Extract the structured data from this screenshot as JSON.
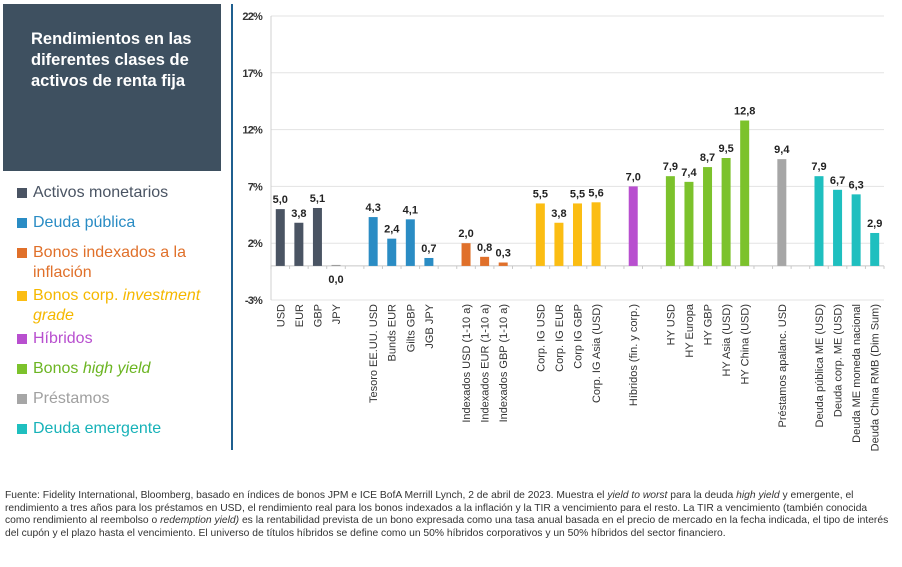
{
  "title": "Rendimientos en las diferentes clases de activos de renta fija",
  "legend": [
    {
      "label": "Activos monetarios",
      "color": "#4a5463",
      "text_color": "#4a5463"
    },
    {
      "label": "Deuda pública",
      "color": "#2a8cc4",
      "text_color": "#2a8cc4"
    },
    {
      "label": "Bonos indexados a la inflación",
      "color": "#e0702a",
      "text_color": "#e0702a"
    },
    {
      "label_plain": "Bonos corp. ",
      "label_italic": "investment grade",
      "color": "#fbbd13",
      "text_color": "#f5b800"
    },
    {
      "label": "Híbridos",
      "color": "#b84fcf",
      "text_color": "#b84fcf"
    },
    {
      "label_plain": "Bonos ",
      "label_italic": "high yield",
      "color": "#7cc22c",
      "text_color": "#6cb523"
    },
    {
      "label": "Préstamos",
      "color": "#a6a6a6",
      "text_color": "#a0a0a0"
    },
    {
      "label": "Deuda emergente",
      "color": "#1fbfbf",
      "text_color": "#17b2b8"
    }
  ],
  "chart_data": {
    "type": "bar",
    "title": "Rendimientos en las diferentes clases de activos de renta fija",
    "xlabel": "",
    "ylabel": "",
    "ylim": [
      -3,
      22
    ],
    "yticks": [
      -3,
      2,
      7,
      12,
      17,
      22
    ],
    "ytick_labels": [
      "-3%",
      "2%",
      "7%",
      "12%",
      "17%",
      "22%"
    ],
    "grid": true,
    "legend_position": "left",
    "categories": [
      "USD",
      "EUR",
      "GBP",
      "JPY",
      "",
      "Tesoro EE.UU. USD",
      "Bunds EUR",
      "Gilts GBP",
      "JGB JPY",
      "",
      "Indexados USD (1-10 a)",
      "Indexados EUR (1-10 a)",
      "Indexados GBP (1-10 a)",
      "",
      "Corp. IG USD",
      "Corp. IG EUR",
      "Corp IG GBP",
      "Corp. IG Asia (USD)",
      "",
      "Híbridos (fin. y corp.)",
      "",
      "HY USD",
      "HY Europa",
      "HY GBP",
      "HY Asia (USD)",
      "HY China (USD)",
      "",
      "Préstamos apalanc. USD",
      "",
      "Deuda pública ME (USD)",
      "Deuda corp. ME (USD)",
      "Deuda ME moneda nacional",
      "Deuda China RMB (Dim Sum)"
    ],
    "values": [
      5.0,
      3.8,
      5.1,
      0.0,
      null,
      4.3,
      2.4,
      4.1,
      0.7,
      null,
      2.0,
      0.8,
      0.3,
      null,
      5.5,
      3.8,
      5.5,
      5.6,
      null,
      7.0,
      null,
      7.9,
      7.4,
      8.7,
      9.5,
      12.8,
      null,
      9.4,
      null,
      7.9,
      6.7,
      6.3,
      2.9
    ],
    "value_labels": [
      "5,0",
      "3,8",
      "5,1",
      "0,0",
      "",
      "4,3",
      "2,4",
      "4,1",
      "0,7",
      "",
      "2,0",
      "0,8",
      "0,3",
      "",
      "5,5",
      "3,8",
      "5,5",
      "5,6",
      "",
      "7,0",
      "",
      "7,9",
      "7,4",
      "8,7",
      "9,5",
      "12,8",
      "",
      "9,4",
      "",
      "7,9",
      "6,7",
      "6,3",
      "2,9"
    ],
    "groups": [
      0,
      0,
      0,
      0,
      null,
      1,
      1,
      1,
      1,
      null,
      2,
      2,
      2,
      null,
      3,
      3,
      3,
      3,
      null,
      4,
      null,
      5,
      5,
      5,
      5,
      5,
      null,
      6,
      null,
      7,
      7,
      7,
      7
    ]
  },
  "footnote": {
    "parts": [
      {
        "t": "Fuente: Fidelity International, Bloomberg, basado en índices de bonos JPM e ICE BofA Merrill Lynch, 2 de abril de 2023. Muestra el "
      },
      {
        "t": "yield to worst",
        "i": true
      },
      {
        "t": " para la deuda "
      },
      {
        "t": "high yield",
        "i": true
      },
      {
        "t": " y emergente, el rendimiento a tres años para los préstamos en USD, el rendimiento real para los bonos indexados a la inflación y la TIR a vencimiento para el resto. La TIR a vencimiento (también conocida como rendimiento al reembolso o "
      },
      {
        "t": "redemption yield)",
        "i": true
      },
      {
        "t": " es la rentabilidad prevista de un bono expresada como una tasa anual basada en el precio de mercado en la fecha indicada, el tipo de interés del cupón y el plazo hasta el vencimiento. El universo de títulos híbridos se define como un 50% híbridos corporativos y un 50% híbridos del sector financiero."
      }
    ]
  }
}
